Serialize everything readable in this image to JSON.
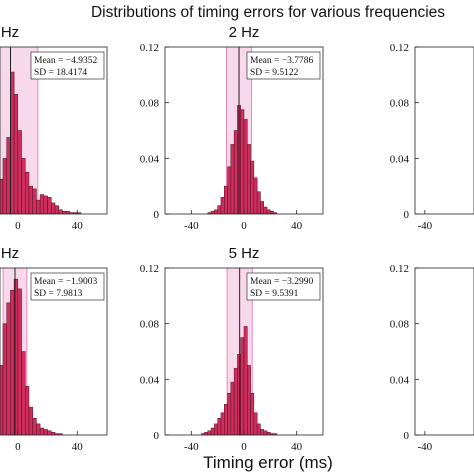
{
  "figure": {
    "suptitle": "Distributions of timing errors for various frequencies",
    "xlabel": "Timing error (ms)"
  },
  "colors": {
    "bar_fill": "#cc2e5d",
    "bar_edge": "#5a0f24",
    "sd_band": "#f8d9ec",
    "sd_line": "#e48cbc",
    "mean_line": "#222222"
  },
  "chart_data": [
    {
      "type": "bar",
      "title": "Hz",
      "xlim": [
        -12,
        60
      ],
      "ylim": [
        0,
        0.12
      ],
      "xticks": [
        "0",
        "40"
      ],
      "yticks": [],
      "mean_label": "Mean = −4.9352",
      "sd_label": "SD = 18.4174",
      "mean": -4.9352,
      "sd": 18.4174,
      "bin_width": 2.5,
      "x": [
        -11.25,
        -8.75,
        -6.25,
        -3.75,
        -1.25,
        1.25,
        3.75,
        6.25,
        8.75,
        11.25,
        13.75,
        16.25,
        18.75,
        21.25,
        23.75,
        26.25,
        28.75,
        31.25,
        33.75,
        36.25,
        38.75,
        41.25
      ],
      "values": [
        0.025,
        0.04,
        0.055,
        0.102,
        0.086,
        0.06,
        0.04,
        0.03,
        0.02,
        0.018,
        0.01,
        0.014,
        0.013,
        0.012,
        0.008,
        0.006,
        0.003,
        0.002,
        0.002,
        0.001,
        0.001,
        0.001
      ]
    },
    {
      "type": "bar",
      "title": "2 Hz",
      "xlim": [
        -60,
        60
      ],
      "ylim": [
        0,
        0.12
      ],
      "xticks": [
        "-40",
        "0",
        "40"
      ],
      "yticks": [
        "0",
        "0.04",
        "0.08",
        "0.12"
      ],
      "mean_label": "Mean = −3.7786",
      "sd_label": "SD = 9.5122",
      "mean": -3.7786,
      "sd": 9.5122,
      "bin_width": 2.5,
      "x": [
        -26.25,
        -23.75,
        -21.25,
        -18.75,
        -16.25,
        -13.75,
        -11.25,
        -8.75,
        -6.25,
        -3.75,
        -1.25,
        1.25,
        3.75,
        6.25,
        8.75,
        11.25,
        13.75,
        16.25,
        18.75,
        21.25,
        23.75
      ],
      "values": [
        0.001,
        0.002,
        0.003,
        0.006,
        0.012,
        0.02,
        0.034,
        0.05,
        0.06,
        0.078,
        0.075,
        0.068,
        0.05,
        0.038,
        0.026,
        0.016,
        0.009,
        0.005,
        0.003,
        0.002,
        0.001
      ]
    },
    {
      "type": "bar",
      "title": "",
      "xlim": [
        -60,
        60
      ],
      "ylim": [
        0,
        0.12
      ],
      "xticks": [
        "-40"
      ],
      "yticks": [
        "0",
        "0.04",
        "0.08",
        "0.12"
      ],
      "mean_label": "",
      "sd_label": "",
      "bin_width": 2.5,
      "x": [],
      "values": []
    },
    {
      "type": "bar",
      "title": "Hz",
      "xlim": [
        -12,
        60
      ],
      "ylim": [
        0,
        0.12
      ],
      "xticks": [
        "0",
        "40"
      ],
      "yticks": [],
      "mean_label": "Mean = −1.9003",
      "sd_label": "SD = 7.9813",
      "mean": -1.9003,
      "sd": 7.9813,
      "bin_width": 2.5,
      "x": [
        -11.25,
        -8.75,
        -6.25,
        -3.75,
        -1.25,
        1.25,
        3.75,
        6.25,
        8.75,
        11.25,
        13.75,
        16.25,
        18.75,
        21.25,
        23.75,
        26.25,
        28.75
      ],
      "values": [
        0.05,
        0.08,
        0.095,
        0.104,
        0.112,
        0.105,
        0.06,
        0.035,
        0.02,
        0.012,
        0.008,
        0.005,
        0.004,
        0.003,
        0.002,
        0.001,
        0.001
      ]
    },
    {
      "type": "bar",
      "title": "5 Hz",
      "xlim": [
        -60,
        60
      ],
      "ylim": [
        0,
        0.12
      ],
      "xticks": [
        "-40",
        "0",
        "40"
      ],
      "yticks": [
        "0",
        "0.04",
        "0.08",
        "0.12"
      ],
      "mean_label": "Mean = −3.2990",
      "sd_label": "SD = 9.5391",
      "mean": -3.299,
      "sd": 9.5391,
      "bin_width": 2.5,
      "x": [
        -31.25,
        -28.75,
        -26.25,
        -23.75,
        -21.25,
        -18.75,
        -16.25,
        -13.75,
        -11.25,
        -8.75,
        -6.25,
        -3.75,
        -1.25,
        1.25,
        3.75,
        6.25,
        8.75,
        11.25,
        13.75,
        16.25,
        18.75,
        21.25,
        23.75
      ],
      "values": [
        0.001,
        0.002,
        0.003,
        0.005,
        0.008,
        0.012,
        0.016,
        0.022,
        0.03,
        0.038,
        0.048,
        0.058,
        0.07,
        0.078,
        0.05,
        0.03,
        0.016,
        0.008,
        0.004,
        0.003,
        0.002,
        0.001,
        0.001
      ]
    },
    {
      "type": "bar",
      "title": "",
      "xlim": [
        -60,
        60
      ],
      "ylim": [
        0,
        0.12
      ],
      "xticks": [
        "-40"
      ],
      "yticks": [
        "0",
        "0.04",
        "0.08",
        "0.12"
      ],
      "mean_label": "",
      "sd_label": "",
      "bin_width": 2.5,
      "x": [],
      "values": []
    }
  ]
}
